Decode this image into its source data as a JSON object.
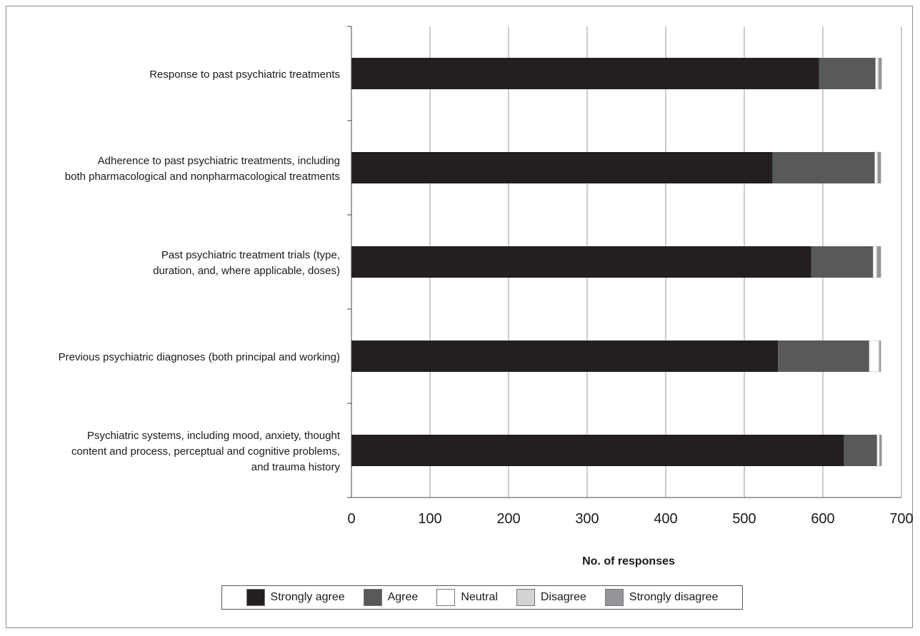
{
  "chart_data": {
    "type": "bar",
    "orientation": "horizontal",
    "stacked": true,
    "categories": [
      [
        "Response to past psychiatric treatments"
      ],
      [
        "Adherence to past psychiatric treatments, including",
        "both pharmacological and nonpharmacological treatments"
      ],
      [
        "Past psychiatric treatment trials (type,",
        "duration, and, where applicable, doses)"
      ],
      [
        "Previous psychiatric diagnoses (both principal and working)"
      ],
      [
        "Psychiatric systems, including mood, anxiety, thought",
        "content and process, perceptual and cognitive problems,",
        "and trauma history"
      ]
    ],
    "series": [
      {
        "name": "Strongly agree",
        "color": "#231f20",
        "values": [
          595,
          536,
          585,
          543,
          627
        ]
      },
      {
        "name": "Agree",
        "color": "#58595b",
        "values": [
          72,
          130,
          79,
          116,
          42
        ]
      },
      {
        "name": "Neutral",
        "color": "#ffffff",
        "values": [
          3,
          3,
          4,
          12,
          3
        ]
      },
      {
        "name": "Disagree",
        "color": "#d1d3d4",
        "values": [
          1,
          1,
          1,
          1,
          0
        ]
      },
      {
        "name": "Strongly disagree",
        "color": "#939598",
        "values": [
          4,
          4,
          5,
          2,
          3
        ]
      }
    ],
    "xlabel": "No. of responses",
    "xlim": [
      0,
      700
    ],
    "xticks": [
      "0",
      "100",
      "200",
      "300",
      "400",
      "500",
      "600",
      "700"
    ],
    "grid": "vertical",
    "legend_position": "bottom"
  }
}
